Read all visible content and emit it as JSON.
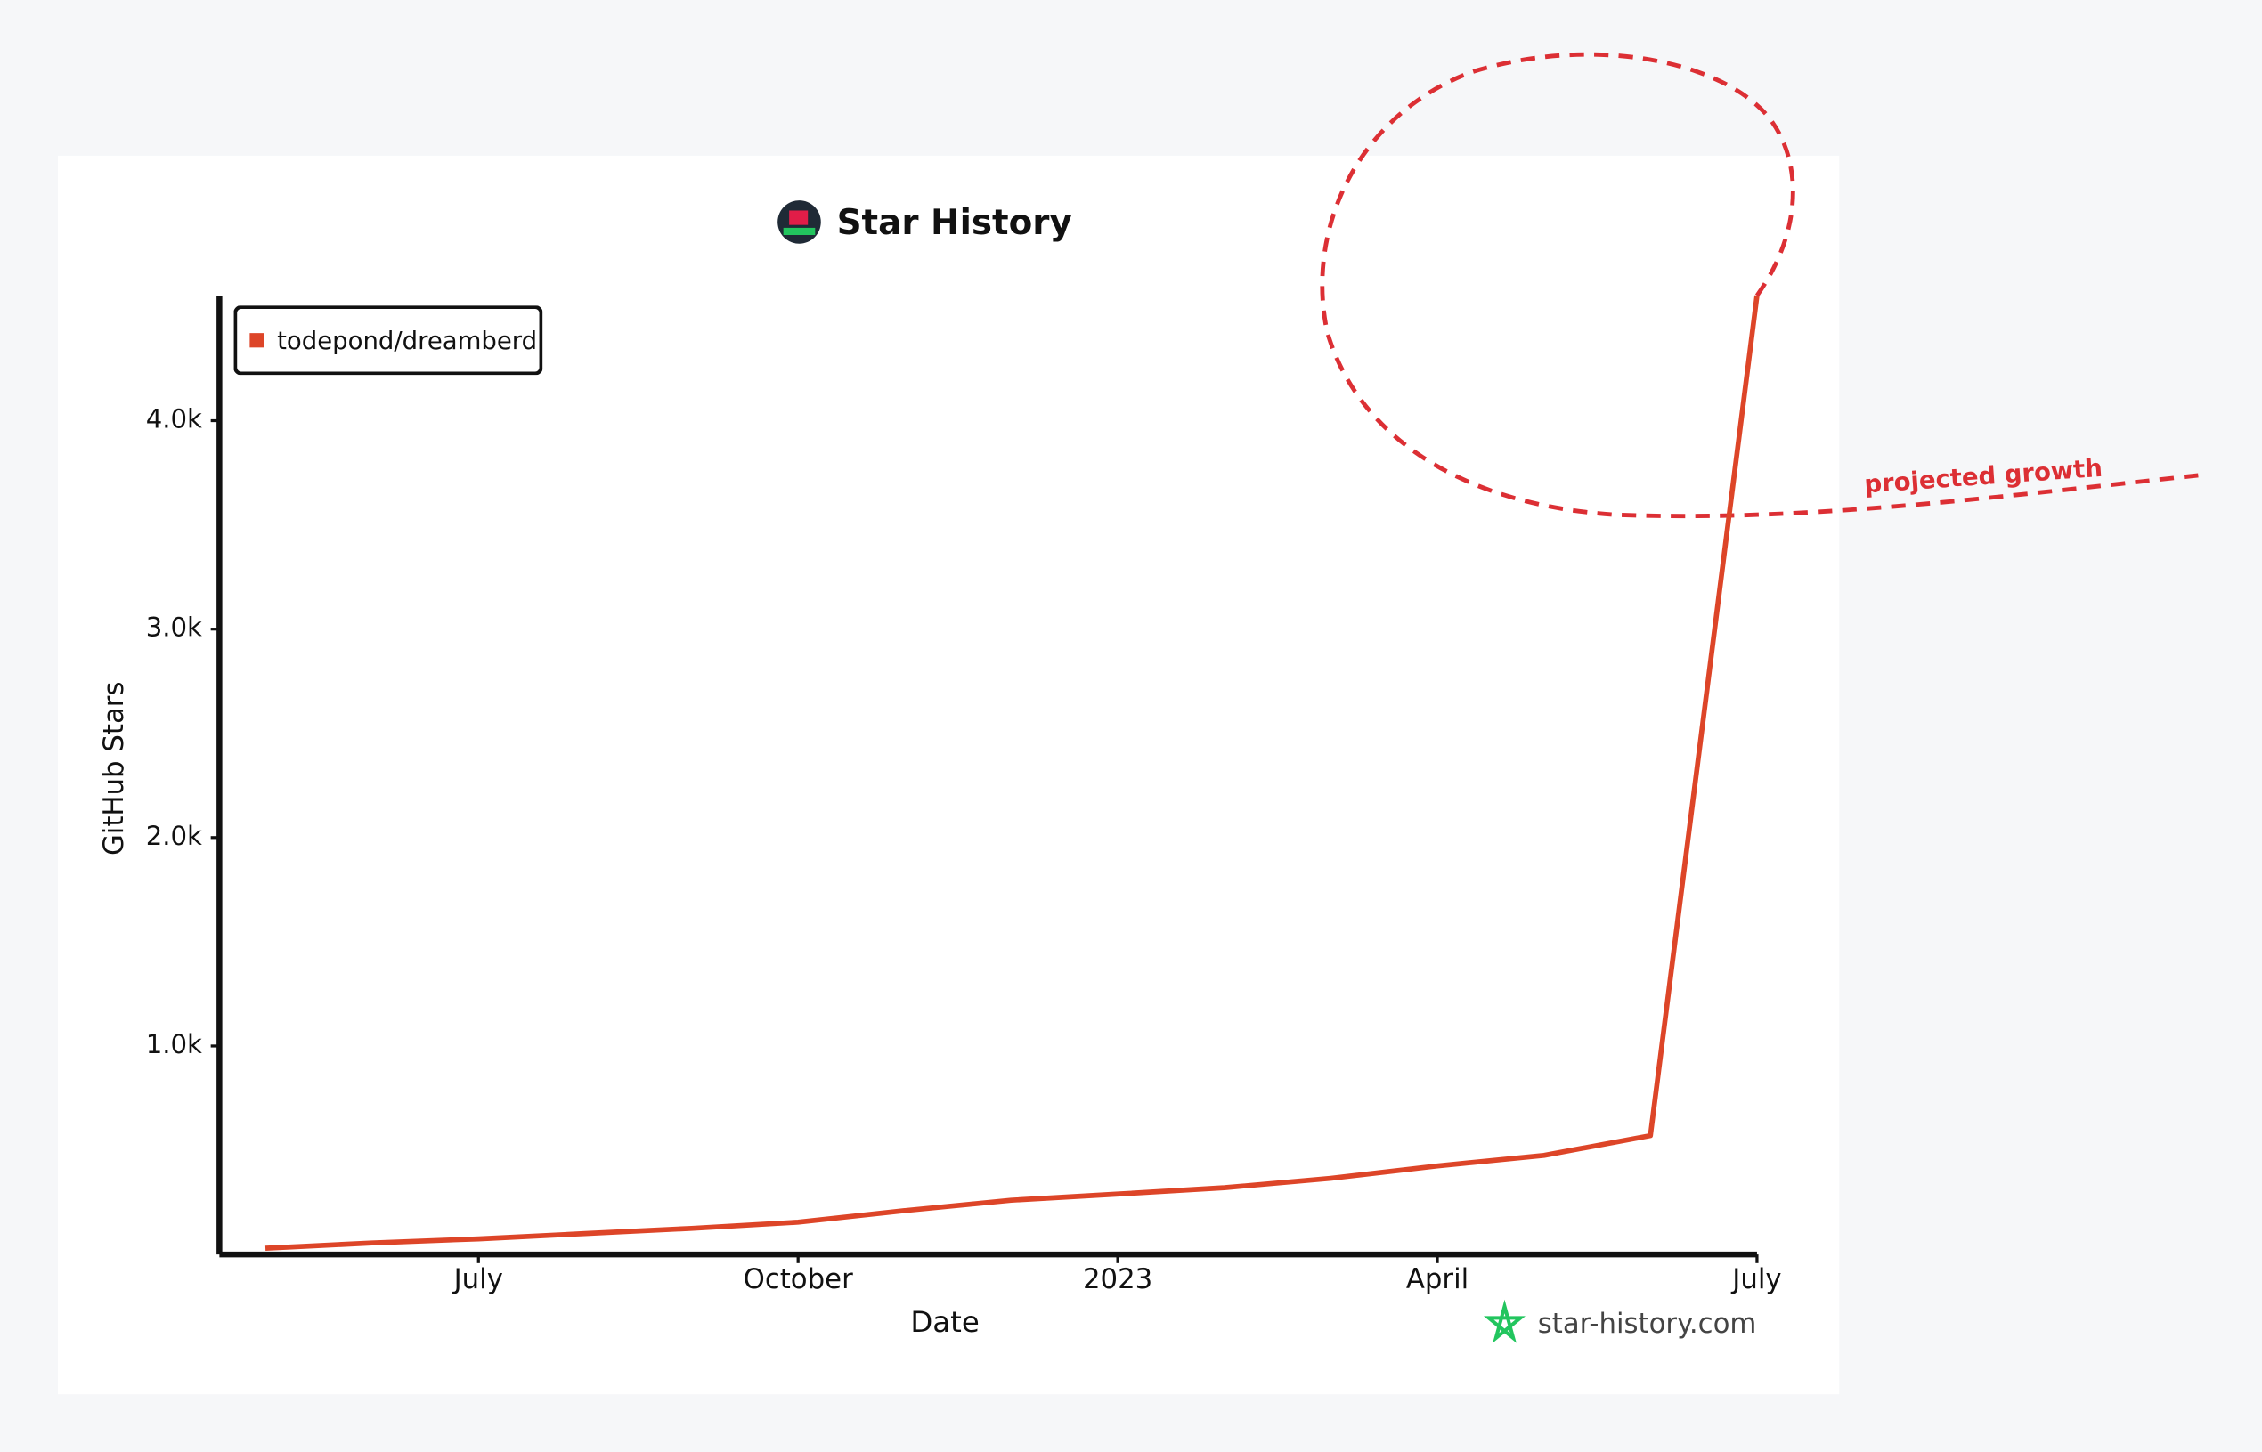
{
  "chart_data": {
    "type": "line",
    "title": "Star History",
    "xlabel": "Date",
    "ylabel": "GitHub Stars",
    "watermark": "star-history.com",
    "annotation": "projected growth",
    "x": [
      "2022-05",
      "2022-06",
      "2022-07",
      "2022-08",
      "2022-09",
      "2022-10",
      "2022-11",
      "2022-12",
      "2023-01",
      "2023-02",
      "2023-03",
      "2023-04",
      "2023-05",
      "2023-06",
      "2023-07"
    ],
    "series": [
      {
        "name": "todepond/dreamberd",
        "color": "#dd4528",
        "values": [
          30,
          55,
          75,
          100,
          125,
          155,
          210,
          260,
          290,
          320,
          365,
          425,
          475,
          570,
          4600
        ]
      }
    ],
    "xlim": [
      "2022-04",
      "2023-07"
    ],
    "xticks": [
      {
        "value": "2022-07",
        "label": "July"
      },
      {
        "value": "2022-10",
        "label": "October"
      },
      {
        "value": "2023-01",
        "label": "2023"
      },
      {
        "value": "2023-04",
        "label": "April"
      },
      {
        "value": "2023-07",
        "label": "July"
      }
    ],
    "ylim": [
      0,
      4600
    ],
    "yticks": [
      {
        "value": 1000,
        "label": "1.0k"
      },
      {
        "value": 2000,
        "label": "2.0k"
      },
      {
        "value": 3000,
        "label": "3.0k"
      },
      {
        "value": 4000,
        "label": "4.0k"
      }
    ],
    "grid": false,
    "legend": "upper-left"
  }
}
